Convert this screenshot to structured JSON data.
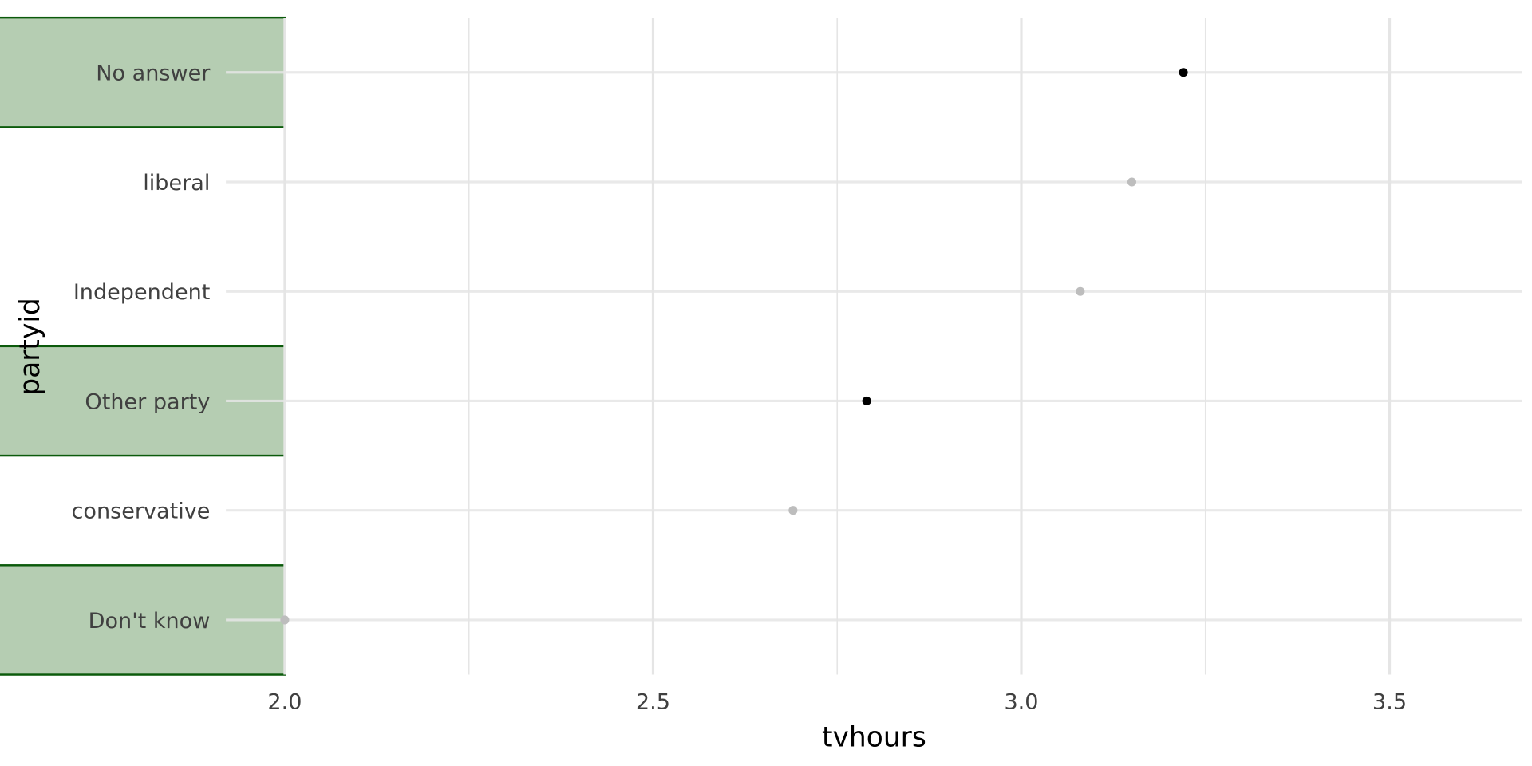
{
  "chart_data": {
    "type": "scatter",
    "title": "",
    "xlabel": "tvhours",
    "ylabel": "partyid",
    "xlim": [
      1.92,
      3.68
    ],
    "x_ticks": [
      {
        "value": 2.0,
        "label": "2.0"
      },
      {
        "value": 2.5,
        "label": "2.5"
      },
      {
        "value": 3.0,
        "label": "3.0"
      },
      {
        "value": 3.5,
        "label": "3.5"
      }
    ],
    "x_minor_ticks": [
      2.25,
      2.75,
      3.25
    ],
    "grid": true,
    "categories": [
      "No answer",
      "liberal",
      "Independent",
      "Other party",
      "conservative",
      "Don't know"
    ],
    "values": [
      3.22,
      3.15,
      3.08,
      2.79,
      2.69,
      2.0
    ],
    "highlighted_points": [
      true,
      false,
      false,
      true,
      false,
      false
    ],
    "highlighted_labels": [
      true,
      false,
      false,
      true,
      false,
      true
    ],
    "colors": {
      "point_highlight": "#000000",
      "point_muted": "#bdbdbd",
      "label_box_fill": "#b5cdb2",
      "label_box_stroke": "#0b5a0b",
      "grid": "#e5e5e5"
    }
  }
}
